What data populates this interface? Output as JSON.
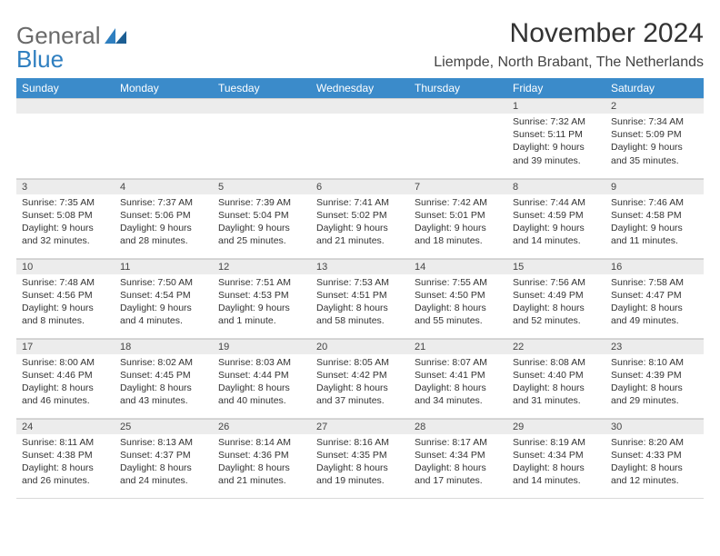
{
  "brand": {
    "part1": "General",
    "part2": "Blue"
  },
  "title": "November 2024",
  "location": "Liempde, North Brabant, The Netherlands",
  "colors": {
    "header_bg": "#3b8bca",
    "header_text": "#ffffff",
    "daynum_bg": "#ececec",
    "text": "#333333",
    "brand_gray": "#6a6a6a",
    "brand_blue": "#2f7fc0"
  },
  "day_headers": [
    "Sunday",
    "Monday",
    "Tuesday",
    "Wednesday",
    "Thursday",
    "Friday",
    "Saturday"
  ],
  "weeks": [
    [
      {
        "n": "",
        "l": [
          "",
          "",
          "",
          ""
        ]
      },
      {
        "n": "",
        "l": [
          "",
          "",
          "",
          ""
        ]
      },
      {
        "n": "",
        "l": [
          "",
          "",
          "",
          ""
        ]
      },
      {
        "n": "",
        "l": [
          "",
          "",
          "",
          ""
        ]
      },
      {
        "n": "",
        "l": [
          "",
          "",
          "",
          ""
        ]
      },
      {
        "n": "1",
        "l": [
          "Sunrise: 7:32 AM",
          "Sunset: 5:11 PM",
          "Daylight: 9 hours",
          "and 39 minutes."
        ]
      },
      {
        "n": "2",
        "l": [
          "Sunrise: 7:34 AM",
          "Sunset: 5:09 PM",
          "Daylight: 9 hours",
          "and 35 minutes."
        ]
      }
    ],
    [
      {
        "n": "3",
        "l": [
          "Sunrise: 7:35 AM",
          "Sunset: 5:08 PM",
          "Daylight: 9 hours",
          "and 32 minutes."
        ]
      },
      {
        "n": "4",
        "l": [
          "Sunrise: 7:37 AM",
          "Sunset: 5:06 PM",
          "Daylight: 9 hours",
          "and 28 minutes."
        ]
      },
      {
        "n": "5",
        "l": [
          "Sunrise: 7:39 AM",
          "Sunset: 5:04 PM",
          "Daylight: 9 hours",
          "and 25 minutes."
        ]
      },
      {
        "n": "6",
        "l": [
          "Sunrise: 7:41 AM",
          "Sunset: 5:02 PM",
          "Daylight: 9 hours",
          "and 21 minutes."
        ]
      },
      {
        "n": "7",
        "l": [
          "Sunrise: 7:42 AM",
          "Sunset: 5:01 PM",
          "Daylight: 9 hours",
          "and 18 minutes."
        ]
      },
      {
        "n": "8",
        "l": [
          "Sunrise: 7:44 AM",
          "Sunset: 4:59 PM",
          "Daylight: 9 hours",
          "and 14 minutes."
        ]
      },
      {
        "n": "9",
        "l": [
          "Sunrise: 7:46 AM",
          "Sunset: 4:58 PM",
          "Daylight: 9 hours",
          "and 11 minutes."
        ]
      }
    ],
    [
      {
        "n": "10",
        "l": [
          "Sunrise: 7:48 AM",
          "Sunset: 4:56 PM",
          "Daylight: 9 hours",
          "and 8 minutes."
        ]
      },
      {
        "n": "11",
        "l": [
          "Sunrise: 7:50 AM",
          "Sunset: 4:54 PM",
          "Daylight: 9 hours",
          "and 4 minutes."
        ]
      },
      {
        "n": "12",
        "l": [
          "Sunrise: 7:51 AM",
          "Sunset: 4:53 PM",
          "Daylight: 9 hours",
          "and 1 minute."
        ]
      },
      {
        "n": "13",
        "l": [
          "Sunrise: 7:53 AM",
          "Sunset: 4:51 PM",
          "Daylight: 8 hours",
          "and 58 minutes."
        ]
      },
      {
        "n": "14",
        "l": [
          "Sunrise: 7:55 AM",
          "Sunset: 4:50 PM",
          "Daylight: 8 hours",
          "and 55 minutes."
        ]
      },
      {
        "n": "15",
        "l": [
          "Sunrise: 7:56 AM",
          "Sunset: 4:49 PM",
          "Daylight: 8 hours",
          "and 52 minutes."
        ]
      },
      {
        "n": "16",
        "l": [
          "Sunrise: 7:58 AM",
          "Sunset: 4:47 PM",
          "Daylight: 8 hours",
          "and 49 minutes."
        ]
      }
    ],
    [
      {
        "n": "17",
        "l": [
          "Sunrise: 8:00 AM",
          "Sunset: 4:46 PM",
          "Daylight: 8 hours",
          "and 46 minutes."
        ]
      },
      {
        "n": "18",
        "l": [
          "Sunrise: 8:02 AM",
          "Sunset: 4:45 PM",
          "Daylight: 8 hours",
          "and 43 minutes."
        ]
      },
      {
        "n": "19",
        "l": [
          "Sunrise: 8:03 AM",
          "Sunset: 4:44 PM",
          "Daylight: 8 hours",
          "and 40 minutes."
        ]
      },
      {
        "n": "20",
        "l": [
          "Sunrise: 8:05 AM",
          "Sunset: 4:42 PM",
          "Daylight: 8 hours",
          "and 37 minutes."
        ]
      },
      {
        "n": "21",
        "l": [
          "Sunrise: 8:07 AM",
          "Sunset: 4:41 PM",
          "Daylight: 8 hours",
          "and 34 minutes."
        ]
      },
      {
        "n": "22",
        "l": [
          "Sunrise: 8:08 AM",
          "Sunset: 4:40 PM",
          "Daylight: 8 hours",
          "and 31 minutes."
        ]
      },
      {
        "n": "23",
        "l": [
          "Sunrise: 8:10 AM",
          "Sunset: 4:39 PM",
          "Daylight: 8 hours",
          "and 29 minutes."
        ]
      }
    ],
    [
      {
        "n": "24",
        "l": [
          "Sunrise: 8:11 AM",
          "Sunset: 4:38 PM",
          "Daylight: 8 hours",
          "and 26 minutes."
        ]
      },
      {
        "n": "25",
        "l": [
          "Sunrise: 8:13 AM",
          "Sunset: 4:37 PM",
          "Daylight: 8 hours",
          "and 24 minutes."
        ]
      },
      {
        "n": "26",
        "l": [
          "Sunrise: 8:14 AM",
          "Sunset: 4:36 PM",
          "Daylight: 8 hours",
          "and 21 minutes."
        ]
      },
      {
        "n": "27",
        "l": [
          "Sunrise: 8:16 AM",
          "Sunset: 4:35 PM",
          "Daylight: 8 hours",
          "and 19 minutes."
        ]
      },
      {
        "n": "28",
        "l": [
          "Sunrise: 8:17 AM",
          "Sunset: 4:34 PM",
          "Daylight: 8 hours",
          "and 17 minutes."
        ]
      },
      {
        "n": "29",
        "l": [
          "Sunrise: 8:19 AM",
          "Sunset: 4:34 PM",
          "Daylight: 8 hours",
          "and 14 minutes."
        ]
      },
      {
        "n": "30",
        "l": [
          "Sunrise: 8:20 AM",
          "Sunset: 4:33 PM",
          "Daylight: 8 hours",
          "and 12 minutes."
        ]
      }
    ]
  ]
}
